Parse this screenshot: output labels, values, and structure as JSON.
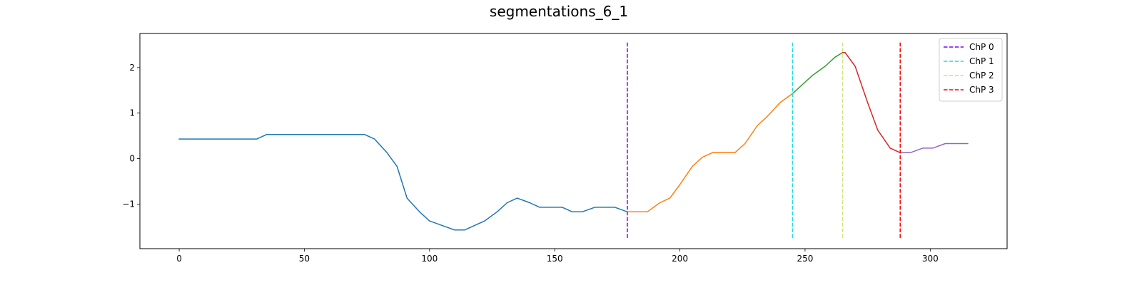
{
  "chart_data": {
    "type": "line",
    "title": "segmentations_6_1",
    "xlabel": "",
    "ylabel": "",
    "xlim": [
      -15.7,
      330.7
    ],
    "ylim": [
      -1.98,
      2.75
    ],
    "xticks": [
      0,
      50,
      100,
      150,
      200,
      250,
      300
    ],
    "yticks": [
      -1,
      0,
      1,
      2
    ],
    "ytick_labels": [
      "−1",
      "0",
      "1",
      "2"
    ],
    "grid": false,
    "legend_position": "top-right",
    "series": [
      {
        "color": "#1f77b4",
        "x": [
          0,
          5,
          10,
          15,
          20,
          25,
          31,
          35,
          40,
          45,
          50,
          55,
          60,
          65,
          70,
          74,
          78,
          83,
          87,
          91,
          96,
          100,
          105,
          110,
          114,
          118,
          122,
          127,
          131,
          135,
          140,
          144,
          148,
          153,
          157,
          161,
          166,
          170,
          174,
          179
        ],
        "y": [
          0.43,
          0.43,
          0.43,
          0.43,
          0.43,
          0.43,
          0.43,
          0.53,
          0.53,
          0.53,
          0.53,
          0.53,
          0.53,
          0.53,
          0.53,
          0.53,
          0.43,
          0.13,
          -0.17,
          -0.87,
          -1.17,
          -1.37,
          -1.47,
          -1.57,
          -1.57,
          -1.47,
          -1.37,
          -1.17,
          -0.97,
          -0.87,
          -0.97,
          -1.07,
          -1.07,
          -1.07,
          -1.17,
          -1.17,
          -1.07,
          -1.07,
          -1.07,
          -1.17
        ]
      },
      {
        "color": "#ff7f0e",
        "x": [
          179,
          183,
          187,
          192,
          196,
          200,
          205,
          209,
          213,
          218,
          222,
          226,
          231,
          235,
          240,
          245
        ],
        "y": [
          -1.17,
          -1.17,
          -1.17,
          -0.97,
          -0.87,
          -0.57,
          -0.17,
          0.03,
          0.13,
          0.13,
          0.13,
          0.33,
          0.73,
          0.93,
          1.23,
          1.43
        ]
      },
      {
        "color": "#2ca02c",
        "x": [
          245,
          249,
          253,
          258,
          262,
          265
        ],
        "y": [
          1.43,
          1.63,
          1.83,
          2.03,
          2.23,
          2.33
        ]
      },
      {
        "color": "#d62728",
        "x": [
          265,
          266,
          270,
          275,
          279,
          284,
          288
        ],
        "y": [
          2.33,
          2.33,
          2.03,
          1.23,
          0.63,
          0.23,
          0.13
        ]
      },
      {
        "color": "#9467bd",
        "x": [
          288,
          292,
          297,
          301,
          306,
          310,
          315
        ],
        "y": [
          0.13,
          0.13,
          0.23,
          0.23,
          0.33,
          0.33,
          0.33
        ]
      }
    ],
    "change_points": [
      {
        "name": "ChP 0",
        "x": 179,
        "color": "#7f00ff"
      },
      {
        "name": "ChP 1",
        "x": 245,
        "color": "#1cdde2"
      },
      {
        "name": "ChP 2",
        "x": 265,
        "color": "#d4e17a"
      },
      {
        "name": "ChP 3",
        "x": 288,
        "color": "#ff0000"
      }
    ],
    "change_point_ylim": [
      -1.78,
      2.55
    ]
  }
}
